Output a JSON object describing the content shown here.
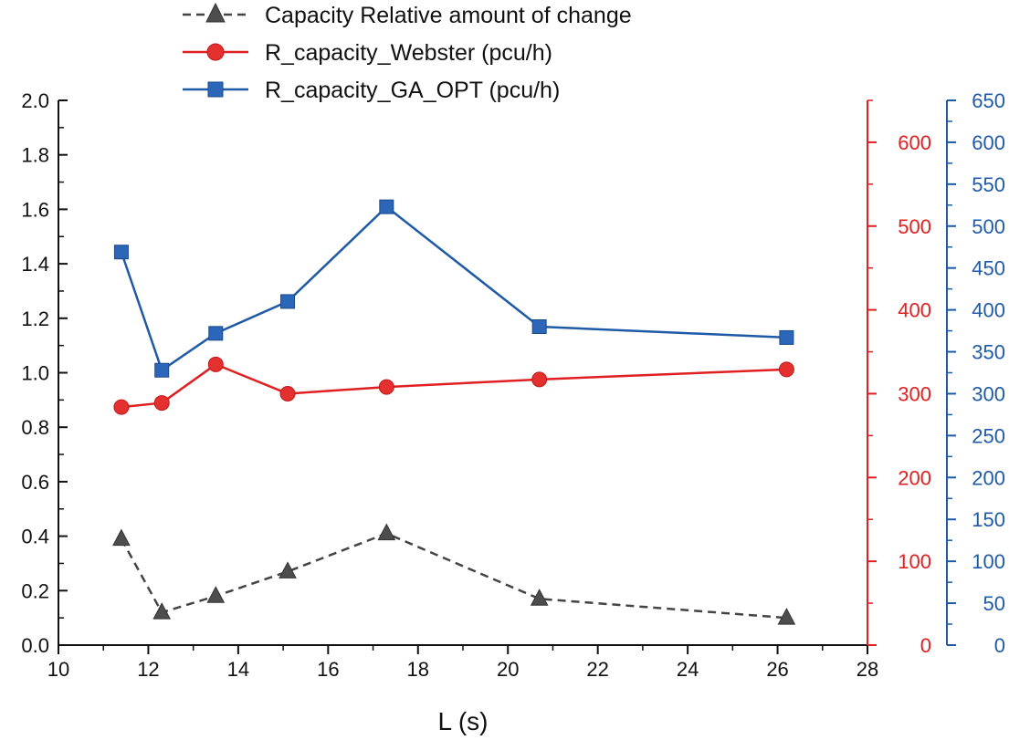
{
  "chart_data": {
    "type": "line",
    "xlabel": "L (s)",
    "x_axis": {
      "min": 10,
      "max": 28,
      "ticks": [
        10,
        12,
        14,
        16,
        18,
        20,
        22,
        24,
        26,
        28
      ]
    },
    "x": [
      11.4,
      12.3,
      13.5,
      15.1,
      17.3,
      20.7,
      26.2
    ],
    "axes": {
      "left": {
        "min": 0,
        "max": 2.0,
        "ticks": [
          "0.0",
          "0.2",
          "0.4",
          "0.6",
          "0.8",
          "1.0",
          "1.2",
          "1.4",
          "1.6",
          "1.8",
          "2.0"
        ],
        "color": "#111111"
      },
      "right1": {
        "min": 0,
        "max": 650,
        "ticks": [
          "0",
          "100",
          "200",
          "300",
          "400",
          "500",
          "600"
        ],
        "tick_values": [
          0,
          100,
          200,
          300,
          400,
          500,
          600
        ],
        "color": "#e02020"
      },
      "right2": {
        "min": 0,
        "max": 650,
        "ticks": [
          "0",
          "50",
          "100",
          "150",
          "200",
          "250",
          "300",
          "350",
          "400",
          "450",
          "500",
          "550",
          "600",
          "650"
        ],
        "tick_values": [
          0,
          50,
          100,
          150,
          200,
          250,
          300,
          350,
          400,
          450,
          500,
          550,
          600,
          650
        ],
        "color": "#1f5aa6"
      }
    },
    "series": [
      {
        "name": "Capacity  Relative amount of change",
        "axis": "left",
        "marker": "triangle",
        "dashed": true,
        "color": "#444444",
        "values": [
          0.39,
          0.12,
          0.18,
          0.27,
          0.41,
          0.17,
          0.1
        ]
      },
      {
        "name": "R_capacity_Webster (pcu/h)",
        "axis": "right1",
        "marker": "circle",
        "dashed": false,
        "color": "#e02020",
        "values": [
          284,
          289,
          335,
          300,
          308,
          317,
          329
        ]
      },
      {
        "name": "R_capacity_GA_OPT (pcu/h)",
        "axis": "right2",
        "marker": "square",
        "dashed": false,
        "color": "#1f5aa6",
        "values": [
          469,
          328,
          372,
          410,
          523,
          380,
          367
        ]
      }
    ]
  }
}
